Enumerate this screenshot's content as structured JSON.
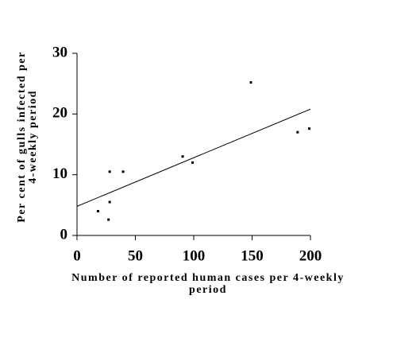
{
  "chart_data": {
    "type": "scatter",
    "xlabel": [
      "Number of reported human cases per 4-weekly",
      "period"
    ],
    "ylabel": [
      "Per cent of gulls infected per",
      "4-weekly period"
    ],
    "x": [
      18,
      28,
      39.5,
      28,
      27,
      90.5,
      99,
      149,
      189,
      199
    ],
    "values": [
      4,
      10.5,
      10.5,
      5.5,
      2.6,
      13,
      12,
      25.2,
      17,
      17.6
    ],
    "color": "#000000",
    "trend_line": {
      "x": [
        0,
        200
      ],
      "values": [
        4.8,
        20.8
      ]
    },
    "xlim": [
      0,
      200
    ],
    "xticks": [
      0,
      50,
      100,
      150,
      200
    ],
    "ylim": [
      0,
      30
    ],
    "yticks": [
      0,
      10,
      20,
      30
    ]
  }
}
